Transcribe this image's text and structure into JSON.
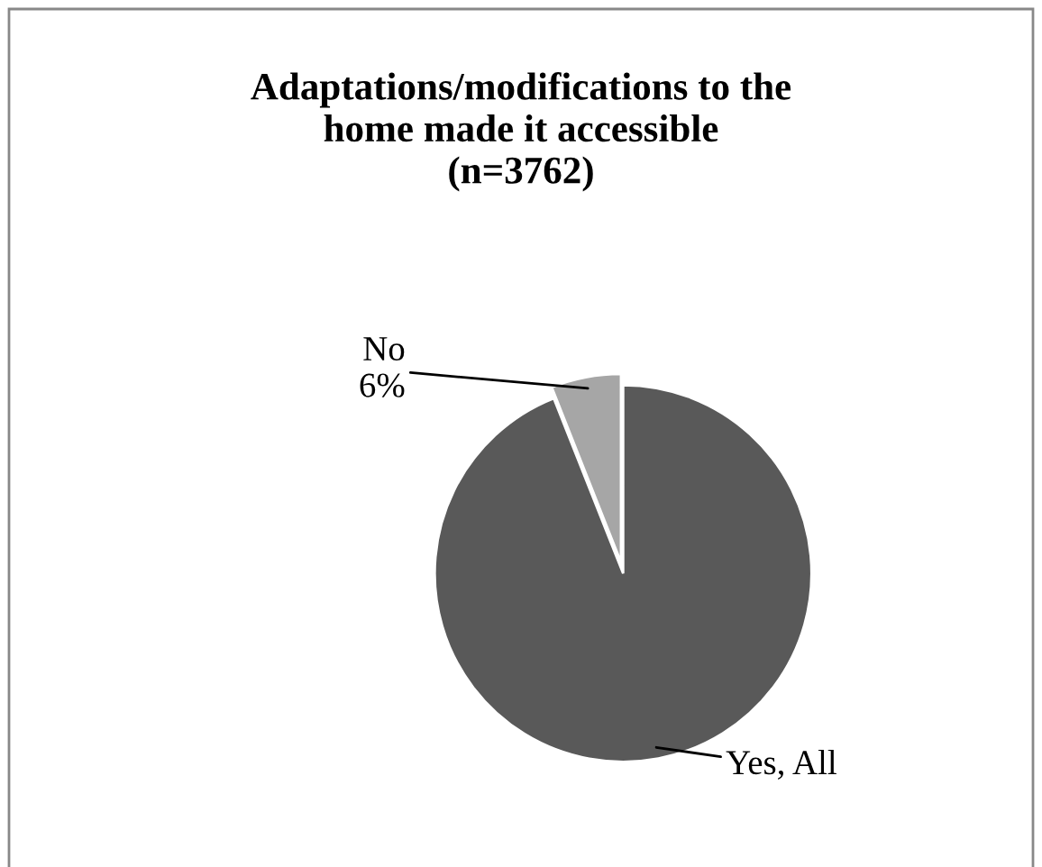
{
  "chart_data": {
    "type": "pie",
    "title": "Adaptations/modifications to the\nhome made it accessible\n(n=3762)",
    "categories": [
      "Yes, All",
      "No"
    ],
    "values": [
      94,
      6
    ],
    "colors": [
      "#595959",
      "#a6a6a6"
    ],
    "value_labels": [
      null,
      "6%"
    ],
    "legend": false
  }
}
